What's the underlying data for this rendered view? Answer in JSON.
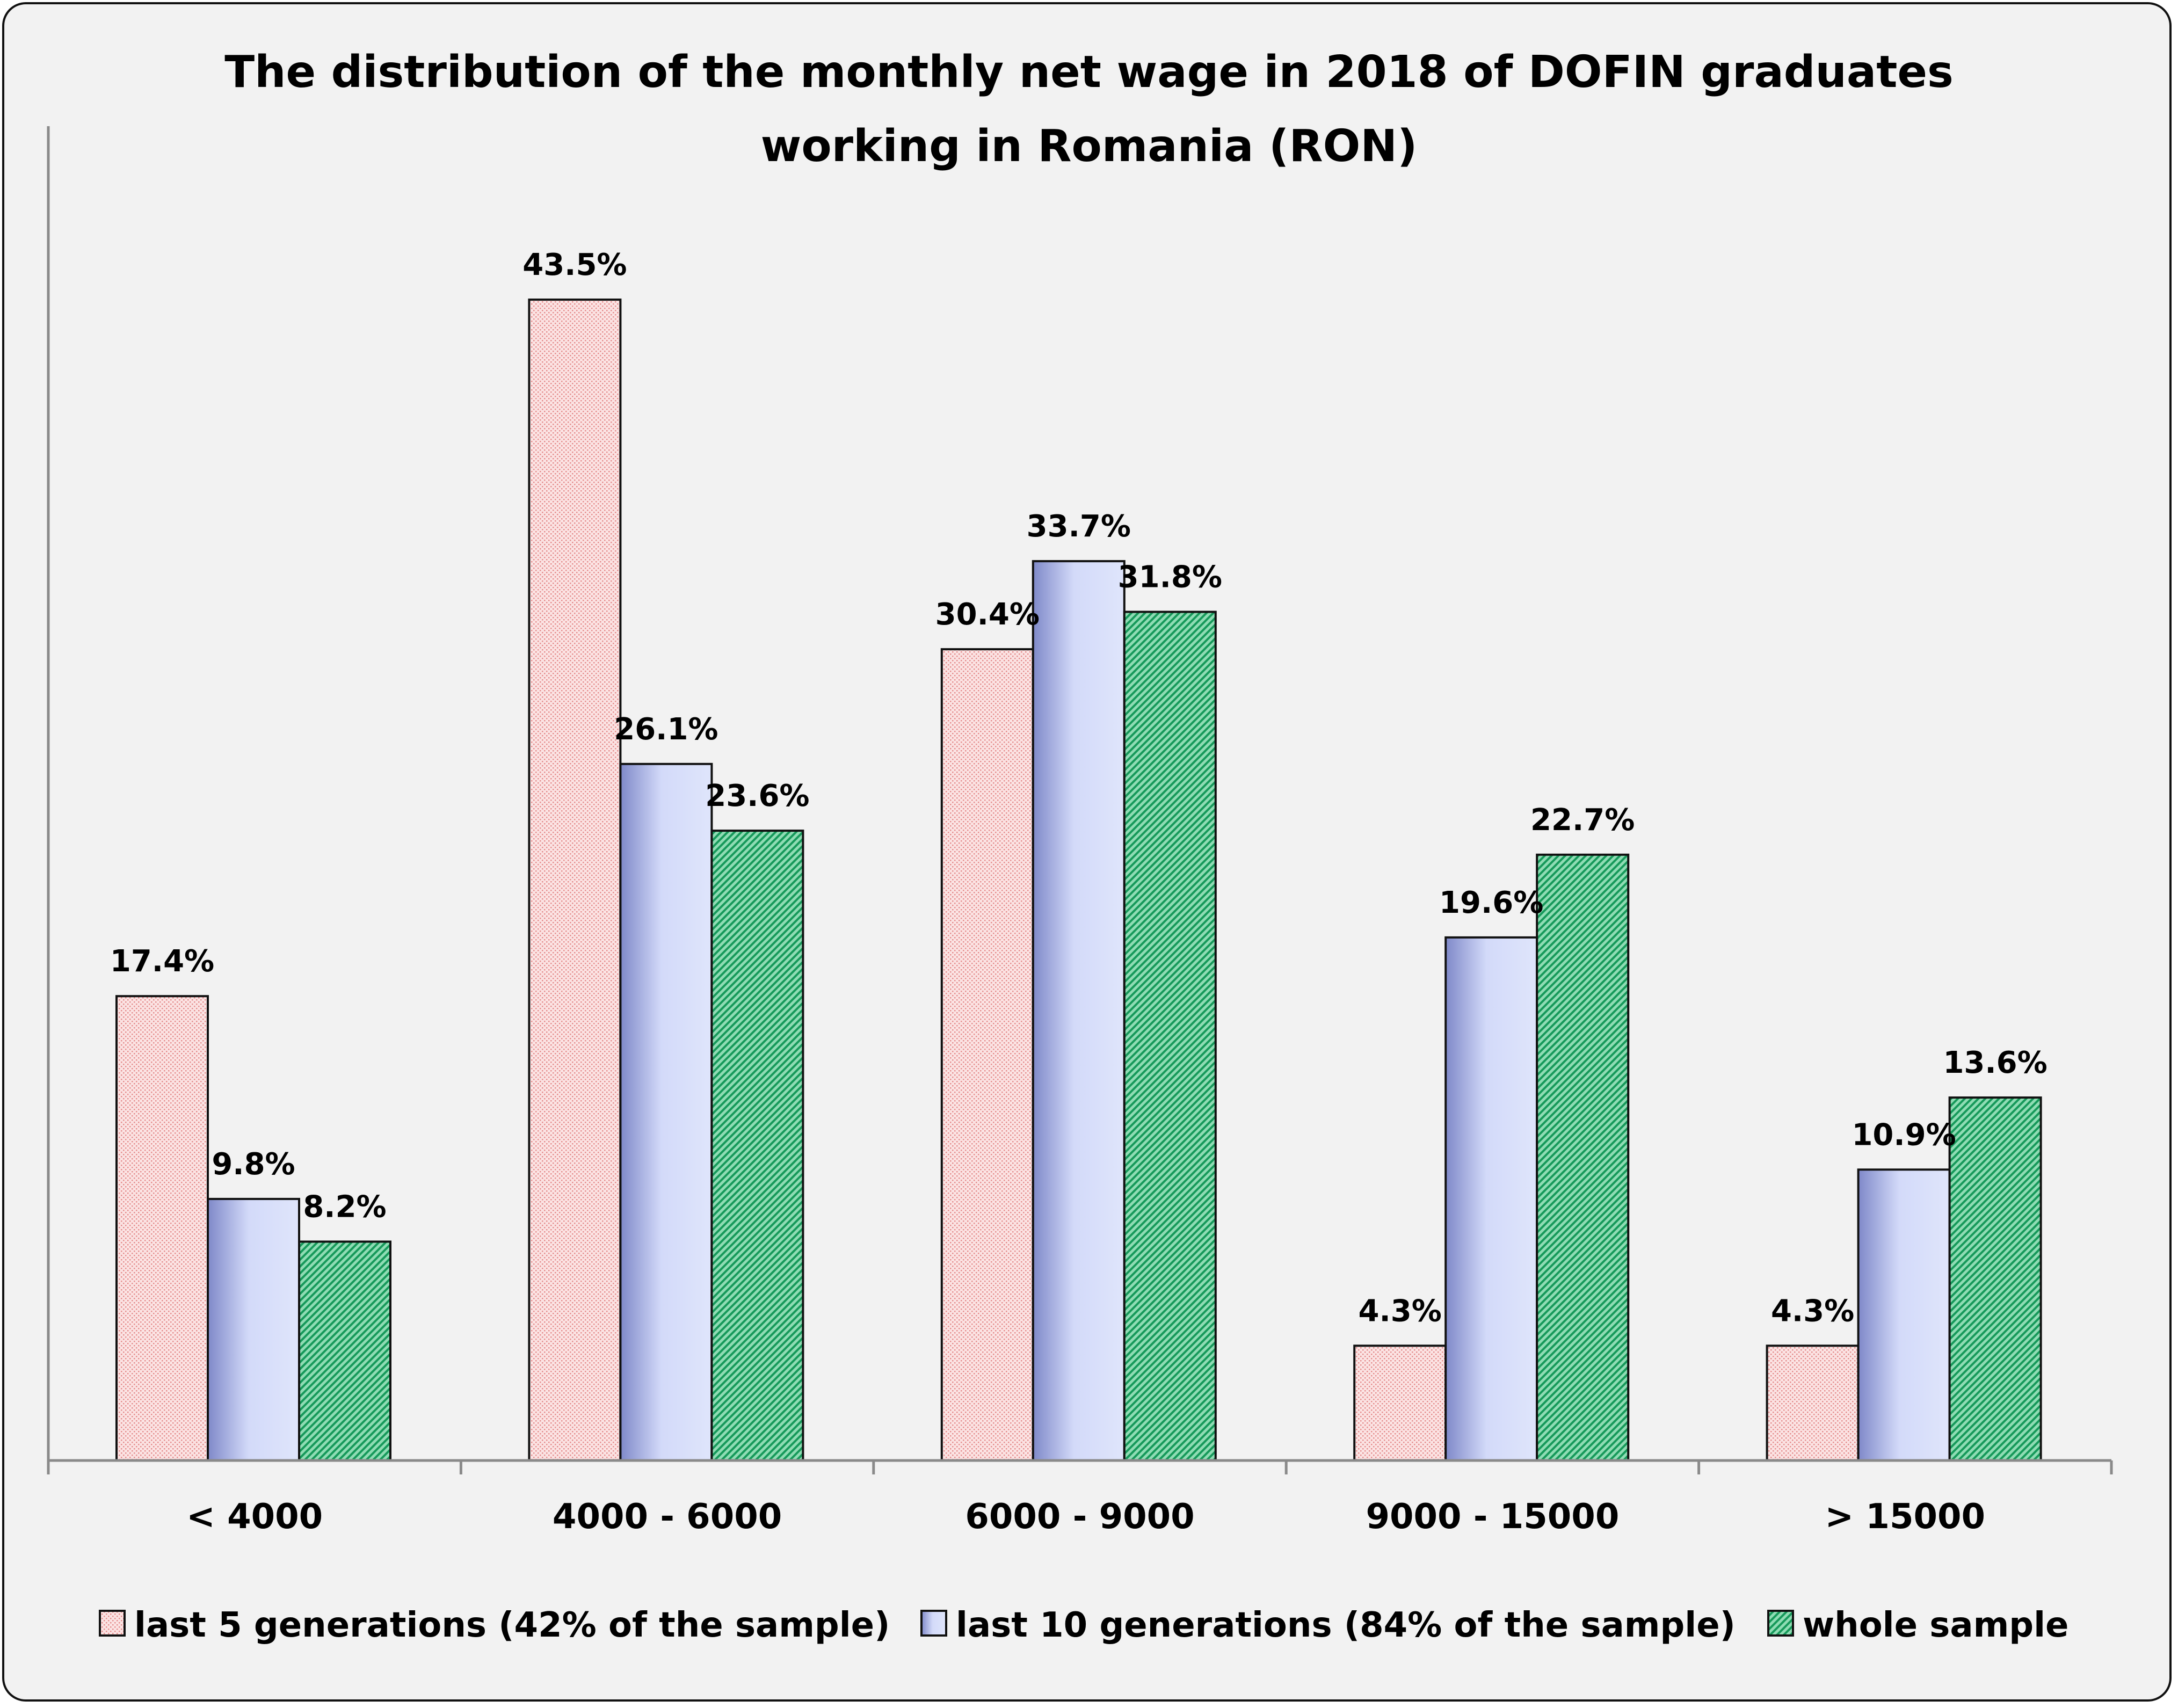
{
  "chart_data": {
    "type": "bar",
    "title": "The distribution of the monthly net wage in 2018 of DOFIN graduates working in Romania (RON)",
    "title_lines": [
      "The distribution of the monthly net wage in 2018 of DOFIN graduates",
      "working in Romania (RON)"
    ],
    "xlabel": "",
    "ylabel": "",
    "categories": [
      "< 4000",
      "4000 - 6000",
      "6000 - 9000",
      "9000 - 15000",
      "> 15000"
    ],
    "series": [
      {
        "name": "last 5 generations (42% of the sample)",
        "values": [
          17.4,
          43.5,
          30.4,
          4.3,
          4.3
        ],
        "labels": [
          "17.4%",
          "43.5%",
          "30.4%",
          "4.3%",
          "4.3%"
        ],
        "color": "#f4c7c7"
      },
      {
        "name": "last 10 generations (84% of the sample)",
        "values": [
          9.8,
          26.1,
          33.7,
          19.6,
          10.9
        ],
        "labels": [
          "9.8%",
          "26.1%",
          "33.7%",
          "19.6%",
          "10.9%"
        ],
        "color": "#c8d0f4"
      },
      {
        "name": "whole sample",
        "values": [
          8.2,
          23.6,
          31.8,
          22.7,
          13.6
        ],
        "labels": [
          "8.2%",
          "23.6%",
          "31.8%",
          "22.7%",
          "13.6%"
        ],
        "color": "#4fc48c"
      }
    ],
    "ylim": [
      0,
      48
    ],
    "y_axis_visible": false,
    "grid": false,
    "legend": "bottom"
  }
}
